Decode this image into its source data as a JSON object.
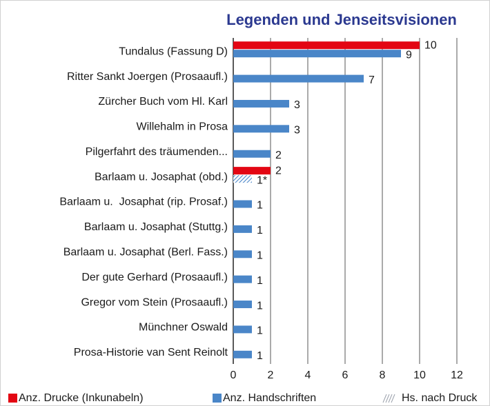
{
  "chart_data": {
    "type": "hbar",
    "title": "Legenden und Jenseitsvisionen",
    "categories": [
      "Tundalus (Fassung D)",
      "Ritter Sankt Joergen (Prosaaufl.)",
      "Zürcher Buch vom Hl. Karl",
      "Willehalm in Prosa",
      "Pilgerfahrt des träumenden...",
      "Barlaam u. Josaphat (obd.)",
      "Barlaam u.  Josaphat (rip. Prosaf.)",
      "Barlaam u. Josaphat (Stuttg.)",
      "Barlaam u. Josaphat (Berl. Fass.)",
      "Der gute Gerhard (Prosaaufl.)",
      "Gregor vom Stein (Prosaaufl.)",
      "Münchner Oswald",
      "Prosa-Historie van Sent Reinolt"
    ],
    "series": [
      {
        "name": "Anz. Drucke (Inkunabeln)",
        "color": "#e30613",
        "values": [
          10,
          null,
          null,
          null,
          null,
          2,
          null,
          null,
          null,
          null,
          null,
          null,
          null
        ]
      },
      {
        "name": "Anz. Handschriften",
        "color": "#4a86c8",
        "values": [
          9,
          7,
          3,
          3,
          2,
          null,
          1,
          1,
          1,
          1,
          1,
          1,
          1
        ]
      },
      {
        "name": "Hs. nach Druck",
        "color": "#4a86c8",
        "pattern": "hatch",
        "values": [
          null,
          null,
          null,
          null,
          null,
          1,
          null,
          null,
          null,
          null,
          null,
          null,
          null
        ],
        "value_labels": [
          null,
          null,
          null,
          null,
          null,
          "1*",
          null,
          null,
          null,
          null,
          null,
          null,
          null
        ]
      }
    ],
    "xlim": [
      0,
      12
    ],
    "xticks": [
      0,
      2,
      4,
      6,
      8,
      10,
      12
    ],
    "grid": true
  }
}
